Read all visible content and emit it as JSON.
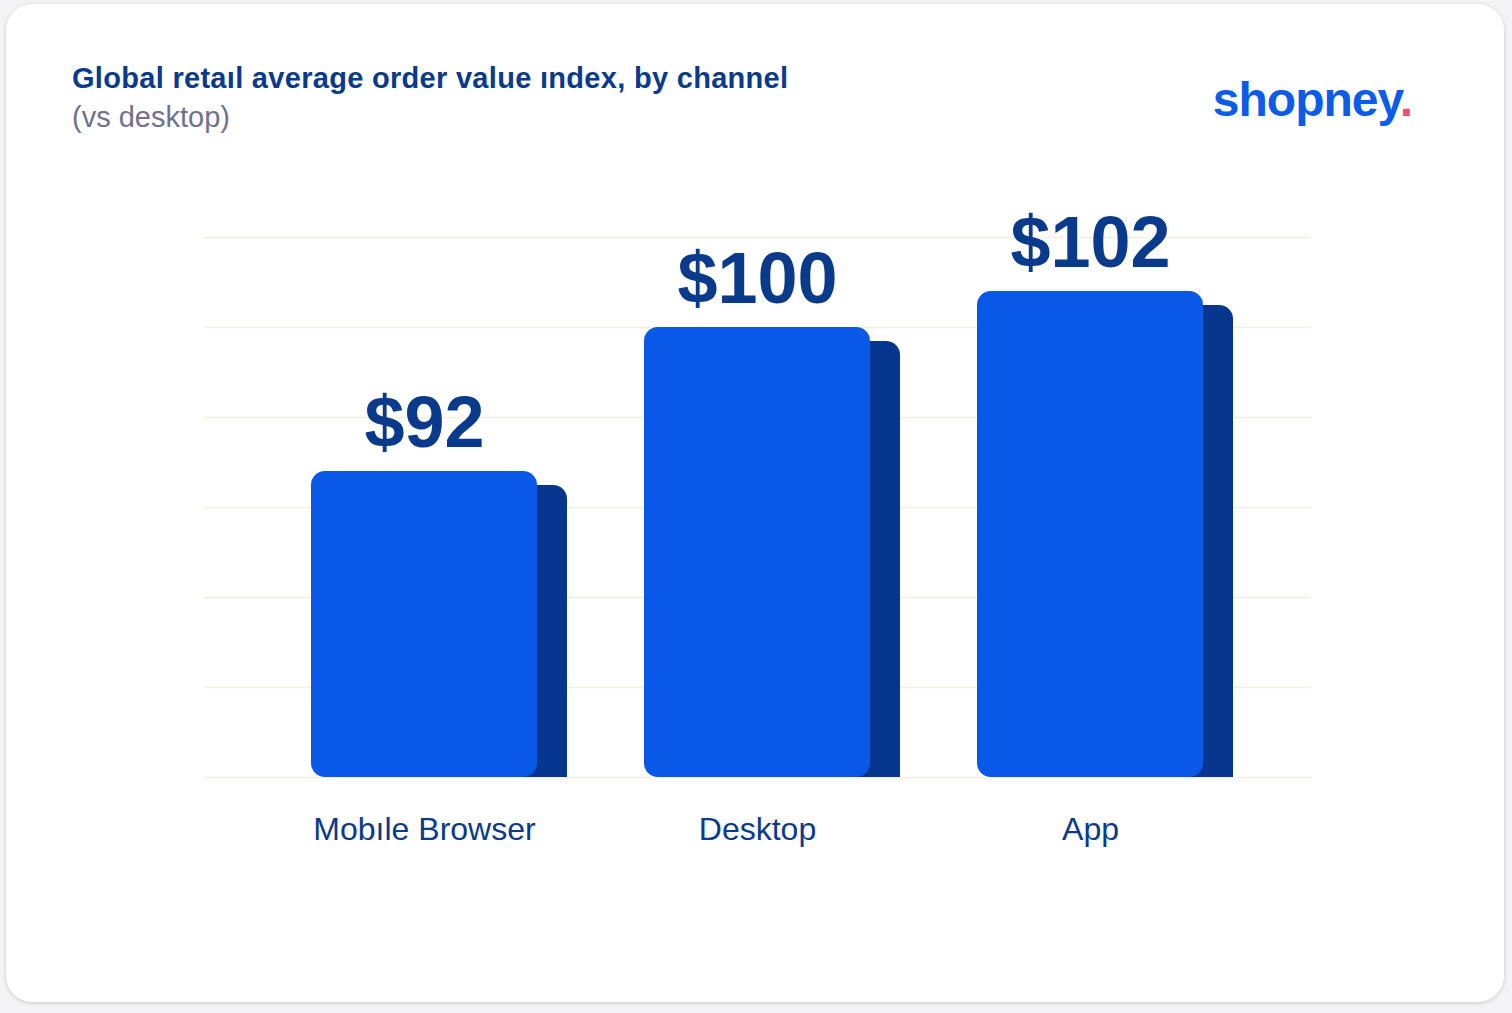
{
  "chart_data": {
    "type": "bar",
    "title": "Global retaıl average order value ındex, by channel",
    "subtitle": "(vs desktop)",
    "logo": "shopney.",
    "categories": [
      "Mobıle Browser",
      "Desktop",
      "App"
    ],
    "values": [
      92,
      100,
      102
    ],
    "value_labels": [
      "$92",
      "$100",
      "$102"
    ],
    "data_labels": true,
    "color": "#0a58e8",
    "ylim": [
      75,
      105
    ],
    "yticks": [
      75,
      80,
      85,
      90,
      95,
      100,
      105
    ],
    "grid": true,
    "tick_labels": "x"
  }
}
